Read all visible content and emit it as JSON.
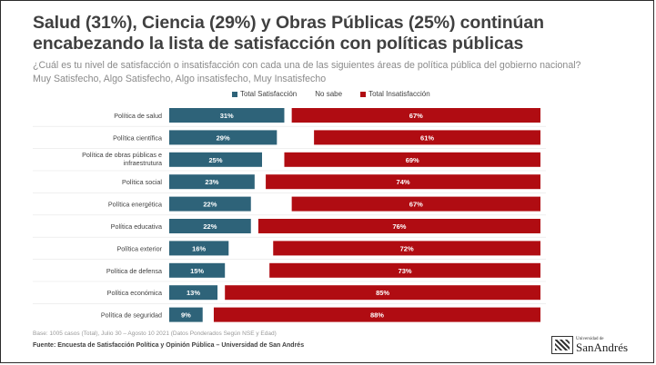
{
  "title": {
    "line1": "Salud (31%), Ciencia (29%) y Obras Públicas (25%) continúan",
    "line2": "encabezando la lista de satisfacción con políticas públicas"
  },
  "subtitle": {
    "line1": "¿Cuál es tu nivel de satisfacción o insatisfacción con cada una de las siguientes áreas de política pública del gobierno nacional?",
    "line2": "Muy Satisfecho, Algo Satisfecho, Algo insatisfecho, Muy Insatisfecho"
  },
  "legend": {
    "satisfied": "Total Satisfacción",
    "nosabe": "No sabe",
    "unsatisfied": "Total Insatisfacción"
  },
  "colors": {
    "satisfied": "#2e6379",
    "unsatisfied": "#b00c12",
    "text": "#404040"
  },
  "chart_data": {
    "type": "bar",
    "orientation": "horizontal-stacked",
    "categories": [
      "Política de salud",
      "Política científica",
      "Política de obras públicas e infraestrutura",
      "Política social",
      "Política energética",
      "Política educativa",
      "Política exterior",
      "Política de defensa",
      "Política económica",
      "Política de seguridad"
    ],
    "category_lines": [
      [
        "Política de salud"
      ],
      [
        "Política científica"
      ],
      [
        "Política de obras públicas e",
        "infraestrutura"
      ],
      [
        "Política social"
      ],
      [
        "Política energética"
      ],
      [
        "Política educativa"
      ],
      [
        "Política exterior"
      ],
      [
        "Política de defensa"
      ],
      [
        "Política económica"
      ],
      [
        "Política de seguridad"
      ]
    ],
    "series": [
      {
        "name": "Total Satisfacción",
        "values": [
          31,
          29,
          25,
          23,
          22,
          22,
          16,
          15,
          13,
          9
        ]
      },
      {
        "name": "No sabe",
        "values": [
          2,
          10,
          6,
          3,
          11,
          2,
          12,
          12,
          2,
          3
        ]
      },
      {
        "name": "Total Insatisfacción",
        "values": [
          67,
          61,
          69,
          74,
          67,
          76,
          72,
          73,
          85,
          88
        ]
      }
    ],
    "value_labels": {
      "satisfied": [
        "31%",
        "29%",
        "25%",
        "23%",
        "22%",
        "22%",
        "16%",
        "15%",
        "13%",
        "9%"
      ],
      "unsatisfied": [
        "67%",
        "61%",
        "69%",
        "74%",
        "67%",
        "76%",
        "72%",
        "73%",
        "85%",
        "88%"
      ]
    },
    "xlim": [
      0,
      100
    ],
    "title": "Salud (31%), Ciencia (29%) y Obras Públicas (25%) continúan encabezando la lista de satisfacción con políticas públicas"
  },
  "footer": {
    "base": "Base: 1005 casos (Total), Julio 30 – Agosto 10 2021 (Datos Ponderados Según NSE y Edad)",
    "fuente": "Fuente: Encuesta de Satisfacción Política y Opinión Pública – Universidad de San Andrés",
    "logo_small": "Universidad de",
    "logo_big": "SanAndrés"
  }
}
